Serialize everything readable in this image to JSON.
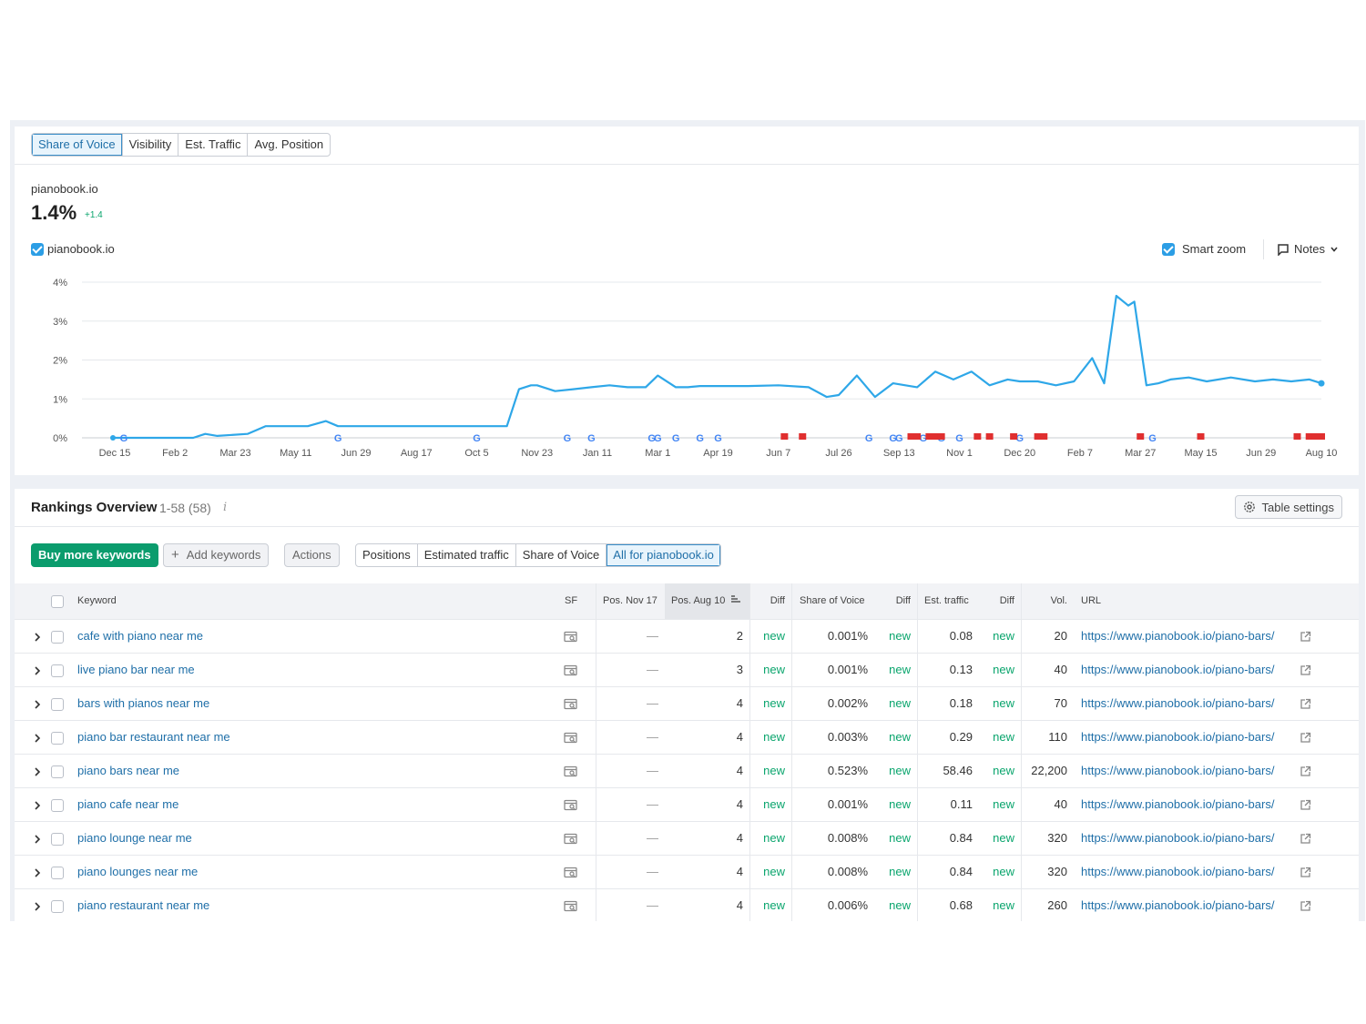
{
  "metric_tabs": [
    "Share of Voice",
    "Visibility",
    "Est. Traffic",
    "Avg. Position"
  ],
  "overview": {
    "domain": "pianobook.io",
    "value": "1.4%",
    "diff": "+1.4"
  },
  "legend": {
    "label": "pianobook.io",
    "checked": true
  },
  "smart_zoom": {
    "label": "Smart zoom",
    "checked": true
  },
  "notes_label": "Notes",
  "colors": {
    "line": "#2ea7e8",
    "accent_blue": "#2c9ee5",
    "green": "#0b9c6d",
    "flag": "#e02f2f"
  },
  "chart_data": {
    "type": "line",
    "title": "",
    "xlabel": "",
    "ylabel": "",
    "ylim": [
      0,
      4
    ],
    "y_ticks": [
      "0%",
      "1%",
      "2%",
      "3%",
      "4%"
    ],
    "x_ticks": [
      "Dec 15",
      "Feb 2",
      "Mar 23",
      "May 11",
      "Jun 29",
      "Aug 17",
      "Oct 5",
      "Nov 23",
      "Jan 11",
      "Mar 1",
      "Apr 19",
      "Jun 7",
      "Jul 26",
      "Sep 13",
      "Nov 1",
      "Dec 20",
      "Feb 7",
      "Mar 27",
      "May 15",
      "Jun 29",
      "Aug 10"
    ],
    "grid": true,
    "series": [
      {
        "name": "pianobook.io",
        "x": [
          0,
          0.1,
          0.5,
          1,
          1.3,
          1.5,
          1.7,
          2.2,
          2.5,
          2.8,
          3.2,
          3.5,
          3.7,
          3.9,
          4.3,
          4.5,
          4.8,
          5.2,
          5.5,
          6.0,
          6.3,
          6.5,
          6.7,
          6.9,
          7.0,
          7.3,
          7.6,
          7.9,
          8.2,
          8.5,
          8.8,
          9.0,
          9.3,
          9.5,
          9.7,
          10.0,
          10.5,
          11.0,
          11.5,
          11.8,
          12.0,
          12.3,
          12.6,
          12.9,
          13.3,
          13.6,
          13.9,
          14.2,
          14.5,
          14.8,
          15.0,
          15.3,
          15.6,
          15.9,
          16.2,
          16.4,
          16.6,
          16.8,
          16.9,
          17.1,
          17.3,
          17.5,
          17.8,
          18.1,
          18.5,
          18.9,
          19.2,
          19.5,
          19.8,
          20.0
        ],
        "values": [
          0,
          0,
          0,
          0,
          0,
          0.1,
          0.05,
          0.1,
          0.3,
          0.3,
          0.3,
          0.43,
          0.3,
          0.3,
          0.3,
          0.3,
          0.3,
          0.3,
          0.3,
          0.3,
          0.3,
          0.3,
          1.25,
          1.35,
          1.35,
          1.2,
          1.25,
          1.3,
          1.35,
          1.3,
          1.3,
          1.6,
          1.3,
          1.3,
          1.33,
          1.33,
          1.33,
          1.35,
          1.3,
          1.05,
          1.1,
          1.6,
          1.05,
          1.4,
          1.3,
          1.7,
          1.5,
          1.7,
          1.35,
          1.5,
          1.45,
          1.45,
          1.35,
          1.45,
          2.05,
          1.4,
          3.65,
          3.4,
          3.5,
          1.35,
          1.4,
          1.5,
          1.55,
          1.45,
          1.55,
          1.45,
          1.5,
          1.45,
          1.5,
          1.4
        ]
      }
    ],
    "google_markers_x": [
      0.15,
      3.7,
      6.0,
      7.5,
      7.9,
      8.9,
      9.0,
      9.3,
      9.7,
      10.0,
      12.5,
      12.9,
      13.0,
      13.4,
      13.7,
      14.0,
      15.0,
      17.2
    ],
    "flag_markers_x": [
      11.1,
      11.4,
      13.2,
      13.3,
      13.5,
      13.6,
      13.7,
      14.3,
      14.5,
      14.9,
      15.3,
      15.4,
      17.0,
      18.0,
      19.6,
      19.8,
      19.9,
      20.0
    ]
  },
  "rankings": {
    "title": "Rankings Overview",
    "range": "1-58 (58)",
    "info": "i",
    "table_settings": "Table settings",
    "buy_more": "Buy more keywords",
    "add_keywords": "Add keywords",
    "actions": "Actions",
    "view_tabs": [
      "Positions",
      "Estimated traffic",
      "Share of Voice",
      "All for pianobook.io"
    ],
    "columns": [
      "Keyword",
      "SF",
      "Pos. Nov 17",
      "Pos. Aug 10",
      "Diff",
      "Share of Voice",
      "Diff",
      "Est. traffic",
      "Diff",
      "Vol.",
      "URL"
    ],
    "rows": [
      {
        "keyword": "cafe with piano near me",
        "pos_old": "—",
        "pos_new": "2",
        "diff": "new",
        "sov": "0.001%",
        "sov_diff": "new",
        "traffic": "0.08",
        "traffic_diff": "new",
        "vol": "20",
        "url": "https://www.pianobook.io/piano-bars/"
      },
      {
        "keyword": "live piano bar near me",
        "pos_old": "—",
        "pos_new": "3",
        "diff": "new",
        "sov": "0.001%",
        "sov_diff": "new",
        "traffic": "0.13",
        "traffic_diff": "new",
        "vol": "40",
        "url": "https://www.pianobook.io/piano-bars/"
      },
      {
        "keyword": "bars with pianos near me",
        "pos_old": "—",
        "pos_new": "4",
        "diff": "new",
        "sov": "0.002%",
        "sov_diff": "new",
        "traffic": "0.18",
        "traffic_diff": "new",
        "vol": "70",
        "url": "https://www.pianobook.io/piano-bars/"
      },
      {
        "keyword": "piano bar restaurant near me",
        "pos_old": "—",
        "pos_new": "4",
        "diff": "new",
        "sov": "0.003%",
        "sov_diff": "new",
        "traffic": "0.29",
        "traffic_diff": "new",
        "vol": "110",
        "url": "https://www.pianobook.io/piano-bars/"
      },
      {
        "keyword": "piano bars near me",
        "pos_old": "—",
        "pos_new": "4",
        "diff": "new",
        "sov": "0.523%",
        "sov_diff": "new",
        "traffic": "58.46",
        "traffic_diff": "new",
        "vol": "22,200",
        "url": "https://www.pianobook.io/piano-bars/"
      },
      {
        "keyword": "piano cafe near me",
        "pos_old": "—",
        "pos_new": "4",
        "diff": "new",
        "sov": "0.001%",
        "sov_diff": "new",
        "traffic": "0.11",
        "traffic_diff": "new",
        "vol": "40",
        "url": "https://www.pianobook.io/piano-bars/"
      },
      {
        "keyword": "piano lounge near me",
        "pos_old": "—",
        "pos_new": "4",
        "diff": "new",
        "sov": "0.008%",
        "sov_diff": "new",
        "traffic": "0.84",
        "traffic_diff": "new",
        "vol": "320",
        "url": "https://www.pianobook.io/piano-bars/"
      },
      {
        "keyword": "piano lounges near me",
        "pos_old": "—",
        "pos_new": "4",
        "diff": "new",
        "sov": "0.008%",
        "sov_diff": "new",
        "traffic": "0.84",
        "traffic_diff": "new",
        "vol": "320",
        "url": "https://www.pianobook.io/piano-bars/"
      },
      {
        "keyword": "piano restaurant near me",
        "pos_old": "—",
        "pos_new": "4",
        "diff": "new",
        "sov": "0.006%",
        "sov_diff": "new",
        "traffic": "0.68",
        "traffic_diff": "new",
        "vol": "260",
        "url": "https://www.pianobook.io/piano-bars/"
      }
    ]
  }
}
